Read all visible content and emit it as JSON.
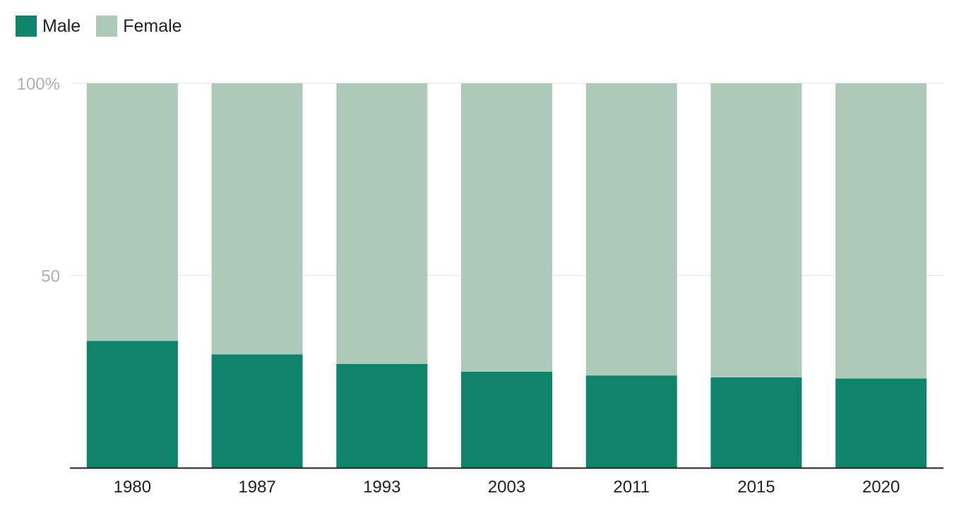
{
  "chart_data": {
    "type": "bar",
    "stacked": true,
    "categories": [
      "1980",
      "1987",
      "1993",
      "2003",
      "2011",
      "2015",
      "2020"
    ],
    "series": [
      {
        "name": "Male",
        "color": "#0e856a",
        "values": [
          33,
          29.5,
          27,
          25,
          24,
          23.5,
          23.2
        ]
      },
      {
        "name": "Female",
        "color": "#acc9b9",
        "values": [
          67,
          70.5,
          73,
          75,
          76,
          76.5,
          76.8
        ]
      }
    ],
    "ylim": [
      0,
      100
    ],
    "yticks": [
      {
        "value": 50,
        "label": "50"
      },
      {
        "value": 100,
        "label": "100%"
      }
    ],
    "grid": true,
    "legend_position": "top-left",
    "title": "",
    "xlabel": "",
    "ylabel": ""
  }
}
